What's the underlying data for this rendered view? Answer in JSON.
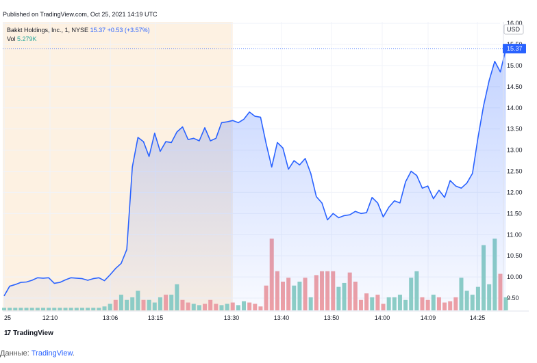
{
  "published": "Published on TradingView.com, Oct 25, 2021 14:19 UTC",
  "legend": {
    "symbol": "Bakkt Holdings, Inc., 1, NYSE",
    "price": "15.37",
    "change": "+0.53 (+3.57%)",
    "vol_label": "Vol",
    "vol_value": "5.279K"
  },
  "currency": "USD",
  "last_price_label": "15.37",
  "brand": {
    "logo": "17",
    "name": "TradingView"
  },
  "source": {
    "prefix": "Данные: ",
    "link": "TradingView",
    "suffix": "."
  },
  "colors": {
    "line": "#2962ff",
    "premarket_bg": "#fdf1e2",
    "vol_up": "#8fd0c4",
    "vol_down": "#f2a1a3"
  },
  "chart_data": {
    "type": "area",
    "ylim": [
      9.3,
      16.0
    ],
    "y_ticks": [
      "9.50",
      "10.00",
      "10.50",
      "11.00",
      "11.50",
      "12.00",
      "12.50",
      "13.00",
      "13.50",
      "14.00",
      "14.50",
      "15.00",
      "15.50",
      "16.00"
    ],
    "x_ticks": [
      "25",
      "12:10",
      "13:06",
      "13:15",
      "13:30",
      "13:40",
      "13:50",
      "14:00",
      "14:09",
      "14:25"
    ],
    "premarket_end_index": 41,
    "series": [
      {
        "values": [
          9.55,
          9.78,
          9.82,
          9.87,
          9.88,
          9.92,
          9.98,
          9.97,
          9.98,
          9.85,
          9.87,
          9.93,
          9.98,
          9.97,
          9.96,
          9.92,
          9.96,
          9.98,
          9.91,
          10.05,
          10.2,
          10.32,
          10.65,
          12.6,
          13.3,
          13.2,
          12.85,
          13.4,
          12.97,
          13.2,
          13.18,
          13.43,
          13.55,
          13.25,
          13.28,
          13.22,
          13.53,
          13.22,
          13.28,
          13.65,
          13.67,
          13.7,
          13.65,
          13.73,
          13.9,
          13.8,
          13.78,
          13.15,
          12.6,
          13.18,
          13.05,
          12.55,
          12.75,
          12.65,
          12.8,
          12.45,
          11.9,
          11.75,
          11.35,
          11.5,
          11.4,
          11.45,
          11.47,
          11.55,
          11.5,
          11.52,
          11.88,
          11.75,
          11.42,
          11.65,
          11.8,
          11.75,
          12.25,
          12.5,
          12.4,
          12.1,
          12.15,
          11.85,
          12.05,
          11.88,
          12.28,
          12.15,
          12.1,
          12.22,
          12.45,
          13.3,
          14.05,
          14.65,
          15.1,
          14.85,
          15.4
        ]
      }
    ],
    "volume": {
      "values": [
        0.02,
        0.02,
        0.02,
        0.02,
        0.02,
        0.02,
        0.02,
        0.02,
        0.02,
        0.02,
        0.02,
        0.02,
        0.02,
        0.02,
        0.02,
        0.02,
        0.02,
        0.02,
        0.03,
        0.05,
        0.08,
        0.12,
        0.08,
        0.1,
        0.15,
        0.08,
        0.08,
        0.06,
        0.1,
        0.12,
        0.12,
        0.2,
        0.08,
        0.06,
        0.05,
        0.04,
        0.05,
        0.08,
        0.05,
        0.04,
        0.05,
        0.06,
        0.04,
        0.07,
        0.06,
        0.05,
        0.03,
        0.19,
        0.55,
        0.3,
        0.22,
        0.25,
        0.19,
        0.22,
        0.25,
        0.1,
        0.27,
        0.3,
        0.3,
        0.3,
        0.18,
        0.21,
        0.29,
        0.22,
        0.08,
        0.13,
        0.1,
        0.12,
        0.05,
        0.1,
        0.1,
        0.12,
        0.08,
        0.25,
        0.3,
        0.1,
        0.08,
        0.12,
        0.1,
        0.06,
        0.07,
        0.1,
        0.25,
        0.15,
        0.12,
        0.18,
        0.5,
        0.2,
        0.55,
        0.28,
        0.1
      ],
      "down": [
        0,
        0,
        0,
        0,
        0,
        0,
        0,
        0,
        0,
        0,
        0,
        0,
        0,
        0,
        0,
        0,
        0,
        0,
        0,
        0,
        1,
        0,
        0,
        0,
        0,
        1,
        0,
        0,
        0,
        1,
        0,
        0,
        1,
        1,
        0,
        0,
        1,
        1,
        1,
        0,
        0,
        1,
        0,
        0,
        1,
        1,
        1,
        1,
        1,
        1,
        1,
        1,
        0,
        0,
        1,
        0,
        1,
        1,
        1,
        1,
        0,
        0,
        1,
        1,
        1,
        1,
        0,
        1,
        1,
        0,
        0,
        0,
        0,
        0,
        0,
        1,
        1,
        0,
        1,
        1,
        1,
        1,
        0,
        0,
        0,
        0,
        0,
        0,
        0,
        1,
        0
      ]
    }
  }
}
